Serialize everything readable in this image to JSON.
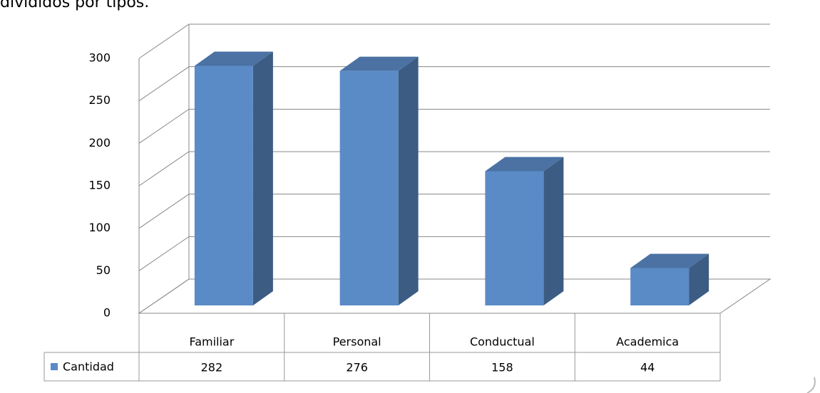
{
  "caption": "divididos por tipos.",
  "chart_data": {
    "type": "bar3d",
    "categories": [
      "Familiar",
      "Personal",
      "Conductual",
      "Academica"
    ],
    "series": [
      {
        "name": "Cantidad",
        "color": "#5b8bc7",
        "values": [
          282,
          276,
          158,
          44
        ]
      }
    ],
    "ylim": [
      0,
      300
    ],
    "yticks": [
      0,
      50,
      100,
      150,
      200,
      250,
      300
    ],
    "grid": true,
    "data_table": true
  }
}
